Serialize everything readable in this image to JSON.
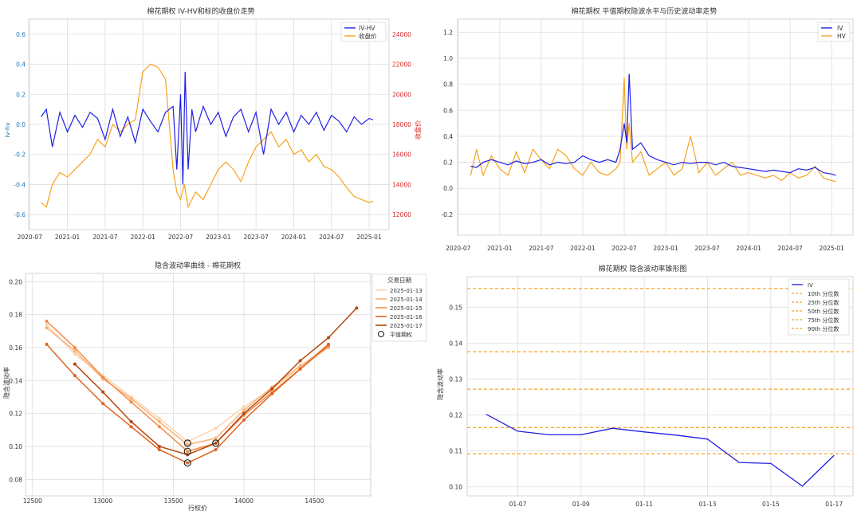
{
  "colors": {
    "blue": "#1f1fe6",
    "orange": "#f5a31f",
    "red_axis": "#d62728",
    "blue_axis": "#1f77b4",
    "grid": "#dddddd",
    "series5": [
      "#fbd5ad",
      "#f9b277",
      "#f48a45",
      "#de6420",
      "#b4470e"
    ]
  },
  "chart_data": [
    {
      "type": "line",
      "title": "棉花期权 IV-HV和标的收盘价走势",
      "xlabel": "",
      "ylabel": "iv-hv",
      "ylabel_right": "收盘价",
      "ylim": [
        -0.7,
        0.7
      ],
      "ylim_right": [
        11000,
        25000
      ],
      "yticks": [
        "-0.6",
        "-0.4",
        "-0.2",
        "0.0",
        "0.2",
        "0.4",
        "0.6"
      ],
      "yticks_right": [
        "12000",
        "14000",
        "16000",
        "18000",
        "20000",
        "22000",
        "24000"
      ],
      "xticks": [
        "2020-07",
        "2021-01",
        "2021-07",
        "2022-01",
        "2022-07",
        "2023-01",
        "2023-07",
        "2024-01",
        "2024-07",
        "2025-01"
      ],
      "legend": [
        "IV-HV",
        "收盘价"
      ],
      "legend_position": "top-right",
      "series": [
        {
          "name": "IV-HV",
          "axis": "left",
          "x": [
            2020.65,
            2020.72,
            2020.8,
            2020.9,
            2021.0,
            2021.1,
            2021.2,
            2021.3,
            2021.4,
            2021.5,
            2021.6,
            2021.7,
            2021.8,
            2021.9,
            2022.0,
            2022.1,
            2022.2,
            2022.3,
            2022.4,
            2022.45,
            2022.5,
            2022.53,
            2022.56,
            2022.6,
            2022.65,
            2022.7,
            2022.8,
            2022.9,
            2023.0,
            2023.1,
            2023.2,
            2023.3,
            2023.4,
            2023.5,
            2023.6,
            2023.7,
            2023.8,
            2023.9,
            2024.0,
            2024.1,
            2024.2,
            2024.3,
            2024.4,
            2024.5,
            2024.6,
            2024.7,
            2024.8,
            2024.9,
            2025.0,
            2025.05
          ],
          "y": [
            0.05,
            0.1,
            -0.15,
            0.08,
            -0.05,
            0.06,
            -0.02,
            0.08,
            0.04,
            -0.1,
            0.1,
            -0.08,
            0.05,
            -0.12,
            0.1,
            0.02,
            -0.05,
            0.08,
            0.12,
            -0.3,
            0.2,
            -0.4,
            0.35,
            -0.3,
            0.1,
            -0.05,
            0.12,
            0.0,
            0.08,
            -0.08,
            0.05,
            0.1,
            -0.05,
            0.08,
            -0.2,
            0.1,
            0.0,
            0.08,
            -0.05,
            0.06,
            0.0,
            0.08,
            -0.04,
            0.06,
            0.02,
            -0.05,
            0.05,
            0.0,
            0.04,
            0.03
          ]
        },
        {
          "name": "收盘价",
          "axis": "right",
          "x": [
            2020.65,
            2020.72,
            2020.8,
            2020.9,
            2021.0,
            2021.1,
            2021.2,
            2021.3,
            2021.4,
            2021.5,
            2021.6,
            2021.7,
            2021.8,
            2021.9,
            2022.0,
            2022.1,
            2022.2,
            2022.3,
            2022.4,
            2022.45,
            2022.5,
            2022.55,
            2022.6,
            2022.7,
            2022.8,
            2022.9,
            2023.0,
            2023.1,
            2023.2,
            2023.3,
            2023.4,
            2023.5,
            2023.6,
            2023.7,
            2023.8,
            2023.9,
            2024.0,
            2024.1,
            2024.2,
            2024.3,
            2024.4,
            2024.5,
            2024.6,
            2024.7,
            2024.8,
            2024.9,
            2025.0,
            2025.05
          ],
          "y": [
            12800,
            12500,
            14000,
            14800,
            14500,
            15000,
            15500,
            16000,
            17000,
            16500,
            18000,
            17500,
            18000,
            18300,
            21500,
            22000,
            21800,
            21000,
            15000,
            13500,
            13000,
            14000,
            12500,
            13500,
            13000,
            14000,
            15000,
            15500,
            15000,
            14200,
            15500,
            16500,
            17000,
            17500,
            16500,
            17000,
            16000,
            16300,
            15500,
            16000,
            15200,
            15000,
            14500,
            13800,
            13200,
            13000,
            12800,
            12900
          ]
        }
      ]
    },
    {
      "type": "line",
      "title": "棉花期权 平值期权隐波水平与历史波动率走势",
      "xlabel": "",
      "ylabel": "",
      "ylim": [
        -0.36,
        1.3
      ],
      "yticks": [
        "-0.2",
        "0.0",
        "0.2",
        "0.4",
        "0.6",
        "0.8",
        "1.0",
        "1.2"
      ],
      "xticks": [
        "2020-07",
        "2021-01",
        "2021-07",
        "2022-01",
        "2022-07",
        "2023-01",
        "2023-07",
        "2024-01",
        "2024-07",
        "2025-01"
      ],
      "legend": [
        "IV",
        "HV"
      ],
      "legend_position": "top-right",
      "series": [
        {
          "name": "IV",
          "x": [
            2020.65,
            2020.72,
            2020.8,
            2020.9,
            2021.0,
            2021.1,
            2021.2,
            2021.3,
            2021.4,
            2021.5,
            2021.6,
            2021.7,
            2021.8,
            2021.9,
            2022.0,
            2022.1,
            2022.2,
            2022.3,
            2022.4,
            2022.45,
            2022.5,
            2022.53,
            2022.56,
            2022.6,
            2022.7,
            2022.8,
            2022.9,
            2023.0,
            2023.1,
            2023.2,
            2023.3,
            2023.4,
            2023.5,
            2023.6,
            2023.7,
            2023.8,
            2023.9,
            2024.0,
            2024.1,
            2024.2,
            2024.3,
            2024.4,
            2024.5,
            2024.6,
            2024.7,
            2024.8,
            2024.9,
            2025.0,
            2025.05
          ],
          "y": [
            0.17,
            0.16,
            0.2,
            0.22,
            0.2,
            0.18,
            0.21,
            0.19,
            0.2,
            0.22,
            0.18,
            0.2,
            0.19,
            0.2,
            0.25,
            0.22,
            0.2,
            0.22,
            0.2,
            0.3,
            0.5,
            0.35,
            0.88,
            0.3,
            0.35,
            0.25,
            0.22,
            0.2,
            0.18,
            0.2,
            0.19,
            0.2,
            0.2,
            0.18,
            0.2,
            0.17,
            0.16,
            0.15,
            0.14,
            0.13,
            0.14,
            0.13,
            0.12,
            0.15,
            0.14,
            0.16,
            0.12,
            0.11,
            0.1
          ]
        },
        {
          "name": "HV",
          "x": [
            2020.65,
            2020.72,
            2020.8,
            2020.9,
            2021.0,
            2021.1,
            2021.2,
            2021.3,
            2021.4,
            2021.5,
            2021.6,
            2021.7,
            2021.8,
            2021.9,
            2022.0,
            2022.1,
            2022.2,
            2022.3,
            2022.4,
            2022.45,
            2022.5,
            2022.53,
            2022.56,
            2022.6,
            2022.7,
            2022.8,
            2022.9,
            2023.0,
            2023.1,
            2023.2,
            2023.3,
            2023.4,
            2023.5,
            2023.6,
            2023.7,
            2023.8,
            2023.9,
            2024.0,
            2024.1,
            2024.2,
            2024.3,
            2024.4,
            2024.5,
            2024.6,
            2024.7,
            2024.8,
            2024.9,
            2025.0,
            2025.05
          ],
          "y": [
            0.1,
            0.3,
            0.1,
            0.25,
            0.15,
            0.1,
            0.28,
            0.12,
            0.3,
            0.22,
            0.15,
            0.3,
            0.25,
            0.15,
            0.1,
            0.2,
            0.12,
            0.1,
            0.15,
            0.2,
            0.85,
            0.3,
            0.5,
            0.2,
            0.28,
            0.1,
            0.15,
            0.2,
            0.1,
            0.15,
            0.4,
            0.12,
            0.2,
            0.1,
            0.15,
            0.2,
            0.1,
            0.12,
            0.1,
            0.08,
            0.1,
            0.06,
            0.12,
            0.08,
            0.1,
            0.17,
            0.08,
            0.06,
            0.05
          ]
        }
      ]
    },
    {
      "type": "line",
      "title": "隐含波动率曲线 - 棉花期权",
      "xlabel": "行权价",
      "ylabel": "隐含波动率",
      "xlim": [
        12450,
        14900
      ],
      "ylim": [
        0.07,
        0.205
      ],
      "xticks": [
        "12500",
        "13000",
        "13500",
        "14000",
        "14500"
      ],
      "yticks": [
        "0.08",
        "0.10",
        "0.12",
        "0.14",
        "0.16",
        "0.18",
        "0.20"
      ],
      "legend_title": "交易日期",
      "legend": [
        "2025-01-13",
        "2025-01-14",
        "2025-01-15",
        "2025-01-16",
        "2025-01-17",
        "平值期权"
      ],
      "legend_position": "top-right",
      "strikes": [
        12600,
        12800,
        13000,
        13200,
        13400,
        13600,
        13800,
        14000,
        14200,
        14400,
        14600,
        14800
      ],
      "series": [
        {
          "name": "2025-01-13",
          "x": [
            12600,
            12800,
            13000,
            13200,
            13400,
            13600,
            13800,
            14000,
            14200,
            14400,
            14600
          ],
          "y": [
            0.174,
            0.156,
            0.143,
            0.13,
            0.117,
            0.103,
            0.111,
            0.124,
            0.135,
            0.148,
            0.162
          ]
        },
        {
          "name": "2025-01-14",
          "x": [
            12600,
            12800,
            13000,
            13200,
            13400,
            13600,
            13800,
            14000,
            14200,
            14400,
            14600
          ],
          "y": [
            0.172,
            0.158,
            0.141,
            0.129,
            0.115,
            0.101,
            0.105,
            0.122,
            0.136,
            0.149,
            0.16
          ]
        },
        {
          "name": "2025-01-15",
          "x": [
            12600,
            12800,
            13000,
            13200,
            13400,
            13600,
            13800,
            14000,
            14200,
            14400,
            14600
          ],
          "y": [
            0.176,
            0.16,
            0.142,
            0.127,
            0.112,
            0.097,
            0.102,
            0.119,
            0.133,
            0.147,
            0.161
          ]
        },
        {
          "name": "2025-01-16",
          "x": [
            12600,
            12800,
            13000,
            13200,
            13400,
            13600,
            13800,
            14000,
            14200,
            14400,
            14600
          ],
          "y": [
            0.162,
            0.143,
            0.126,
            0.112,
            0.098,
            0.09,
            0.098,
            0.116,
            0.132,
            0.147,
            0.162
          ]
        },
        {
          "name": "2025-01-17",
          "x": [
            12800,
            13000,
            13200,
            13400,
            13600,
            13800,
            14000,
            14200,
            14400,
            14600,
            14800
          ],
          "y": [
            0.15,
            0.133,
            0.115,
            0.1,
            0.095,
            0.102,
            0.12,
            0.135,
            0.152,
            0.166,
            0.184
          ]
        }
      ],
      "atm_points": [
        {
          "x": 13600,
          "y": 0.102
        },
        {
          "x": 13600,
          "y": 0.097
        },
        {
          "x": 13800,
          "y": 0.102
        },
        {
          "x": 13600,
          "y": 0.09
        }
      ]
    },
    {
      "type": "line",
      "title": "棉花期权 隐含波动率锥形图",
      "xlabel": "",
      "ylabel": "隐含波动率",
      "ylim": [
        0.0975,
        0.1585
      ],
      "yticks": [
        "0.10",
        "0.11",
        "0.12",
        "0.13",
        "0.14",
        "0.15"
      ],
      "xticks": [
        "01-07",
        "01-09",
        "01-11",
        "01-13",
        "01-15",
        "01-17"
      ],
      "legend": [
        "IV",
        "10th 分位数",
        "25th 分位数",
        "50th 分位数",
        "75th 分位数",
        "90th 分位数"
      ],
      "legend_position": "top-right",
      "series": [
        {
          "name": "IV",
          "x": [
            0,
            1,
            2,
            3,
            4,
            5,
            6,
            7,
            8,
            9,
            10,
            11
          ],
          "y": [
            0.1202,
            0.1155,
            0.1145,
            0.1145,
            0.1163,
            0.1153,
            0.1144,
            0.1133,
            0.1068,
            0.1065,
            0.1002,
            0.1088
          ]
        }
      ],
      "quantile_values": [
        0.1092,
        0.1165,
        0.1272,
        0.1376,
        0.1552
      ]
    }
  ]
}
